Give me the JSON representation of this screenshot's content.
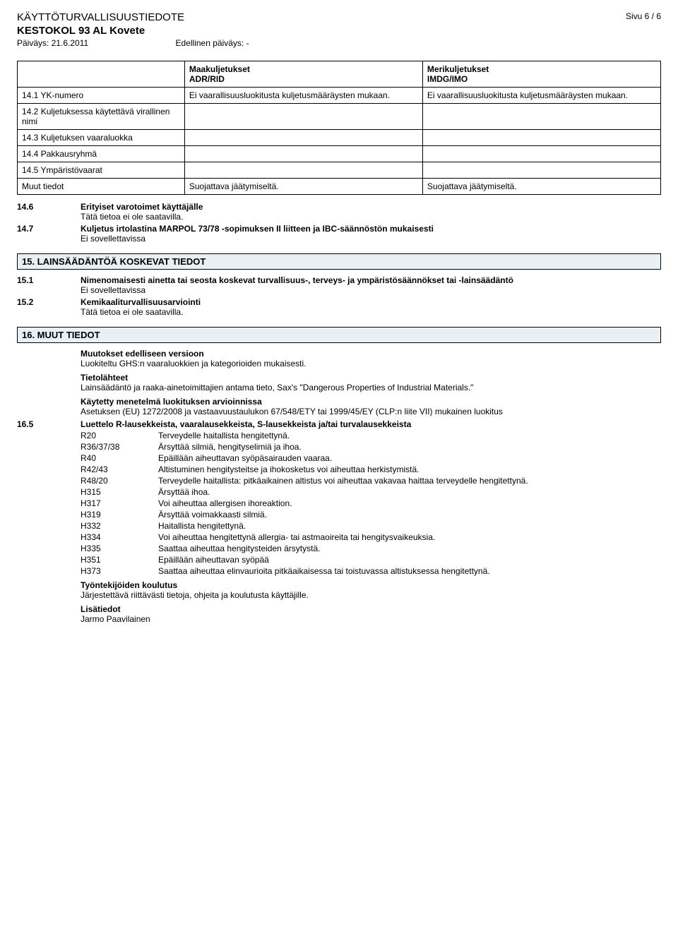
{
  "header": {
    "doc_type": "KÄYTTÖTURVALLISUUSTIEDOTE",
    "title": "KESTOKOL 93 AL Kovete",
    "date_label": "Päiväys: 21.6.2011",
    "prev_date_label": "Edellinen päiväys: -",
    "page": "Sivu  6 / 6"
  },
  "transport": {
    "col_land_1": "Maakuljetukset",
    "col_land_2": "ADR/RID",
    "col_sea_1": "Merikuljetukset",
    "col_sea_2": "IMDG/IMO",
    "rows": [
      {
        "label": "14.1 YK-numero",
        "land": "Ei vaarallisuusluokitusta kuljetusmääräysten mukaan.",
        "sea": "Ei vaarallisuusluokitusta kuljetusmääräysten mukaan."
      },
      {
        "label": "14.2 Kuljetuksessa käytettävä virallinen nimi",
        "land": "",
        "sea": ""
      },
      {
        "label": "14.3 Kuljetuksen vaaraluokka",
        "land": "",
        "sea": ""
      },
      {
        "label": "14.4 Pakkausryhmä",
        "land": "",
        "sea": ""
      },
      {
        "label": "14.5 Ympäristövaarat",
        "land": "",
        "sea": ""
      },
      {
        "label": "Muut tiedot",
        "land": "Suojattava jäätymiseltä.",
        "sea": "Suojattava jäätymiseltä."
      }
    ]
  },
  "s14_6": {
    "num": "14.6",
    "head": "Erityiset varotoimet käyttäjälle",
    "body": "Tätä tietoa ei ole saatavilla."
  },
  "s14_7": {
    "num": "14.7",
    "head": "Kuljetus irtolastina MARPOL 73/78 -sopimuksen II liitteen ja IBC-säännöstön mukaisesti",
    "body": "Ei sovellettavissa"
  },
  "section15": {
    "title": "15. LAINSÄÄDÄNTÖÄ KOSKEVAT TIEDOT",
    "s15_1": {
      "num": "15.1",
      "head": "Nimenomaisesti ainetta tai seosta koskevat turvallisuus-, terveys- ja ympäristösäännökset tai -lainsäädäntö",
      "body": "Ei sovellettavissa"
    },
    "s15_2": {
      "num": "15.2",
      "head": "Kemikaaliturvallisuusarviointi",
      "body": "Tätä tietoa ei ole saatavilla."
    }
  },
  "section16": {
    "title": "16. MUUT TIEDOT",
    "changes_head": "Muutokset edelliseen versioon",
    "changes_body": "Luokiteltu GHS:n vaaraluokkien ja kategorioiden mukaisesti.",
    "sources_head": "Tietolähteet",
    "sources_body": "Lainsäädäntö ja raaka-ainetoimittajien antama tieto, Sax's \"Dangerous Properties of Industrial Materials.\"",
    "method_head": "Käytetty menetelmä luokituksen arvioinnissa",
    "method_body": "Asetuksen (EU) 1272/2008 ja vastaavuustaulukon 67/548/ETY tai 1999/45/EY (CLP:n liite VII) mukainen luokitus",
    "s16_5_num": "16.5",
    "s16_5_head": "Luettelo R-lausekkeista, vaaralausekkeista, S-lausekkeista ja/tai turvalausekkeista",
    "phrases": [
      {
        "k": "R20",
        "v": "Terveydelle haitallista hengitettynä."
      },
      {
        "k": "R36/37/38",
        "v": "Ärsyttää silmiä, hengityselimiä ja ihoa."
      },
      {
        "k": "R40",
        "v": "Epäillään aiheuttavan syöpäsairauden vaaraa."
      },
      {
        "k": "R42/43",
        "v": "Altistuminen hengitysteitse ja ihokosketus voi aiheuttaa herkistymistä."
      },
      {
        "k": "R48/20",
        "v": "Terveydelle haitallista: pitkäaikainen altistus voi aiheuttaa vakavaa haittaa terveydelle hengitettynä."
      },
      {
        "k": "H315",
        "v": "Ärsyttää ihoa."
      },
      {
        "k": "H317",
        "v": "Voi aiheuttaa allergisen ihoreaktion."
      },
      {
        "k": "H319",
        "v": "Ärsyttää voimakkaasti silmiä."
      },
      {
        "k": "H332",
        "v": "Haitallista hengitettynä."
      },
      {
        "k": "H334",
        "v": "Voi aiheuttaa hengitettynä allergia- tai astmaoireita tai hengitysvaikeuksia."
      },
      {
        "k": "H335",
        "v": "Saattaa aiheuttaa hengitysteiden ärsytystä."
      },
      {
        "k": "H351",
        "v": "Epäillään aiheuttavan syöpää"
      },
      {
        "k": "H373",
        "v": "Saattaa aiheuttaa elinvaurioita pitkäaikaisessa tai toistuvassa altistuksessa hengitettynä."
      }
    ],
    "training_head": "Työntekijöiden koulutus",
    "training_body": "Järjestettävä riittävästi tietoja, ohjeita ja koulutusta käyttäjille.",
    "extra_head": "Lisätiedot",
    "extra_body": "Jarmo Paavilainen"
  }
}
